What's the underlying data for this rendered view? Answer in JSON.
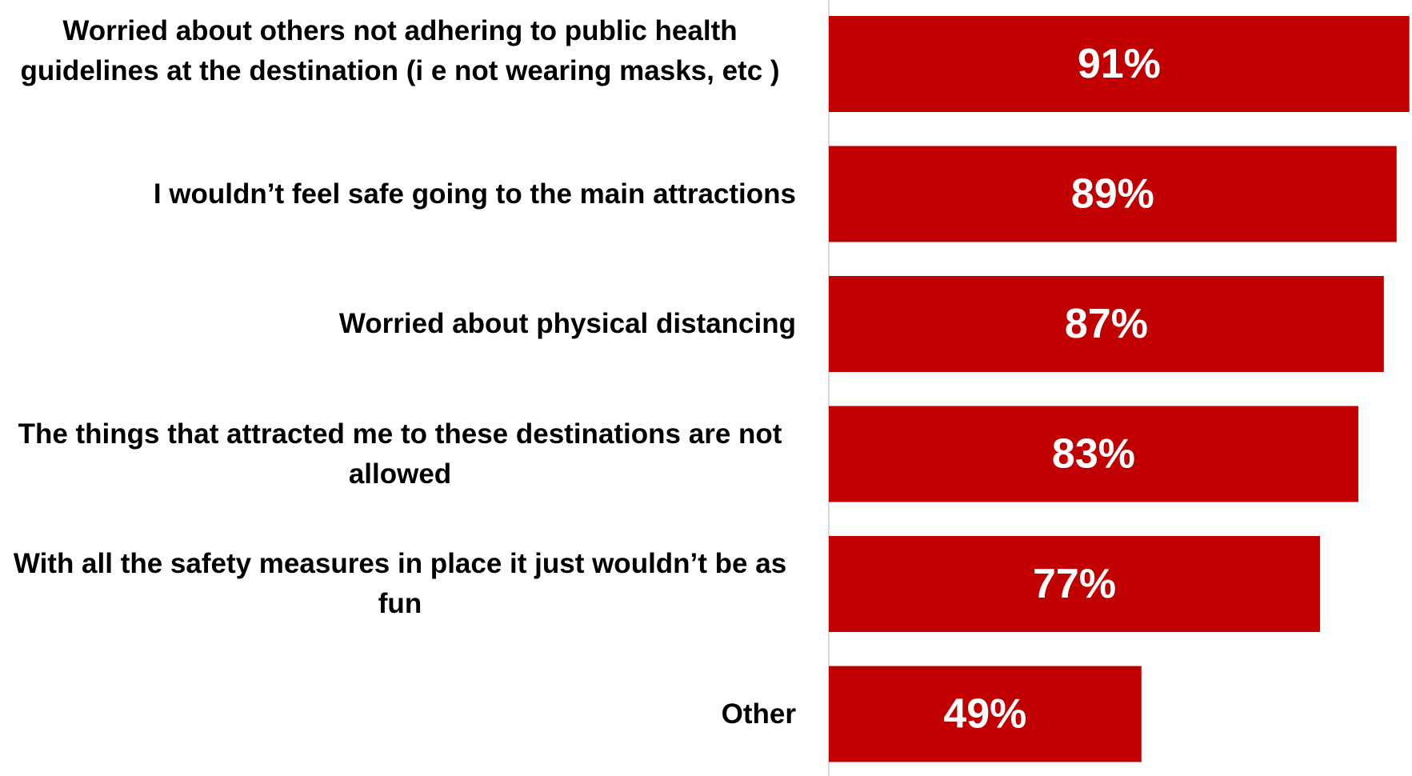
{
  "chart_data": {
    "type": "bar",
    "orientation": "horizontal",
    "categories": [
      "Worried about others not adhering to public health guidelines at the destination (i e  not wearing masks, etc )",
      "I wouldn’t feel safe going to the main attractions",
      "Worried about physical distancing",
      "The things that attracted me to these destinations are not allowed",
      "With all the safety measures in place it just wouldn’t be as fun",
      "Other"
    ],
    "values": [
      91,
      89,
      87,
      83,
      77,
      49
    ],
    "data_labels": [
      "91%",
      "89%",
      "87%",
      "83%",
      "77%",
      "49%"
    ],
    "unit": "%",
    "title": "",
    "xlabel": "",
    "ylabel": "",
    "grid": false,
    "legend": "none",
    "bar_color": "#c00000",
    "label_color": "#ffffff",
    "axis_color": "#d9d9d9"
  }
}
